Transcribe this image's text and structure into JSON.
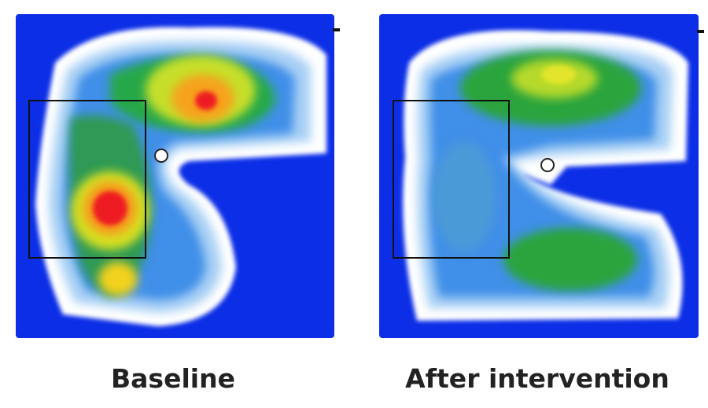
{
  "panels": [
    {
      "label": "Baseline"
    },
    {
      "label": "After intervention"
    }
  ]
}
